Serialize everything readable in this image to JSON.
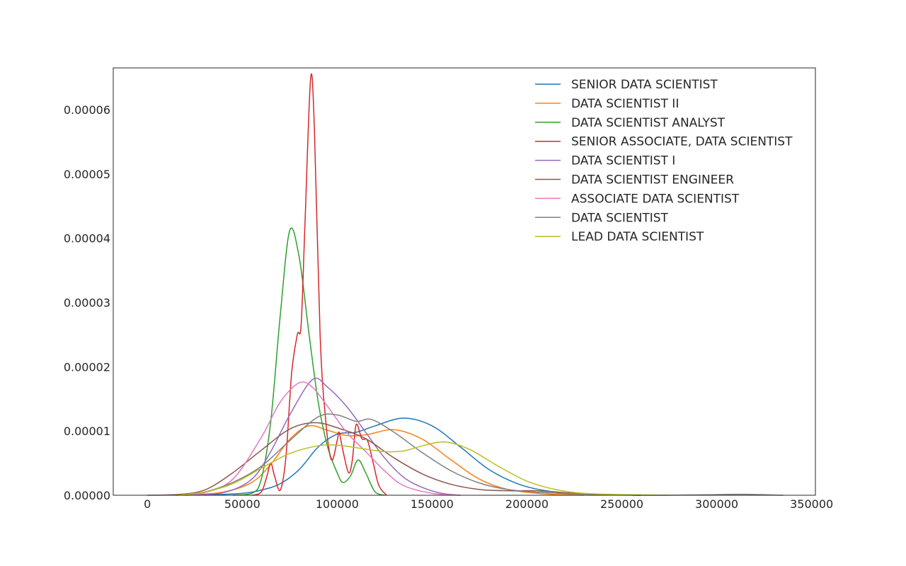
{
  "chart_data": {
    "type": "line",
    "title": "",
    "xlabel": "",
    "ylabel": "",
    "xlim": [
      -18000,
      352000
    ],
    "ylim": [
      0,
      6.65e-05
    ],
    "grid": false,
    "legend_position": "top-right",
    "x_ticks": [
      {
        "value": 0,
        "label": "0"
      },
      {
        "value": 50000,
        "label": "50000"
      },
      {
        "value": 100000,
        "label": "100000"
      },
      {
        "value": 150000,
        "label": "150000"
      },
      {
        "value": 200000,
        "label": "200000"
      },
      {
        "value": 250000,
        "label": "250000"
      },
      {
        "value": 300000,
        "label": "300000"
      },
      {
        "value": 350000,
        "label": "350000"
      }
    ],
    "y_ticks": [
      {
        "value": 0,
        "label": "0.00000"
      },
      {
        "value": 1e-05,
        "label": "0.00001"
      },
      {
        "value": 2e-05,
        "label": "0.00002"
      },
      {
        "value": 3e-05,
        "label": "0.00003"
      },
      {
        "value": 4e-05,
        "label": "0.00004"
      },
      {
        "value": 5e-05,
        "label": "0.00005"
      },
      {
        "value": 6e-05,
        "label": "0.00006"
      }
    ],
    "series": [
      {
        "name": "SENIOR DATA SCIENTIST",
        "color": "#1f77b4",
        "points": [
          [
            30000,
            0
          ],
          [
            50000,
            3e-07
          ],
          [
            60000,
            8e-07
          ],
          [
            70000,
            1.8e-06
          ],
          [
            80000,
            4e-06
          ],
          [
            90000,
            7.5e-06
          ],
          [
            100000,
            9.5e-06
          ],
          [
            110000,
            9.8e-06
          ],
          [
            120000,
            1.08e-05
          ],
          [
            135000,
            1.2e-05
          ],
          [
            150000,
            1.08e-05
          ],
          [
            165000,
            7.5e-06
          ],
          [
            180000,
            4e-06
          ],
          [
            195000,
            1.8e-06
          ],
          [
            210000,
            7e-07
          ],
          [
            230000,
            2e-07
          ],
          [
            260000,
            0
          ]
        ]
      },
      {
        "name": "DATA SCIENTIST II",
        "color": "#ff7f0e",
        "points": [
          [
            20000,
            0
          ],
          [
            40000,
            5e-07
          ],
          [
            55000,
            2e-06
          ],
          [
            65000,
            4.8e-06
          ],
          [
            75000,
            8.7e-06
          ],
          [
            85000,
            1.08e-05
          ],
          [
            95000,
            1.01e-05
          ],
          [
            105000,
            9.3e-06
          ],
          [
            115000,
            9.4e-06
          ],
          [
            130000,
            1.02e-05
          ],
          [
            145000,
            8.7e-06
          ],
          [
            160000,
            5.5e-06
          ],
          [
            175000,
            2.5e-06
          ],
          [
            190000,
            9e-07
          ],
          [
            210000,
            2e-07
          ],
          [
            230000,
            0
          ]
        ]
      },
      {
        "name": "DATA SCIENTIST ANALYST",
        "color": "#2ca02c",
        "points": [
          [
            45000,
            0
          ],
          [
            55000,
            3e-07
          ],
          [
            60000,
            2.5e-06
          ],
          [
            65000,
            1.15e-05
          ],
          [
            70000,
            2.8e-05
          ],
          [
            75000,
            4.12e-05
          ],
          [
            80000,
            3.7e-05
          ],
          [
            85000,
            2.55e-05
          ],
          [
            90000,
            1.45e-05
          ],
          [
            95000,
            7.5e-06
          ],
          [
            100000,
            3.5e-06
          ],
          [
            103000,
            2e-06
          ],
          [
            107000,
            3e-06
          ],
          [
            111000,
            5.5e-06
          ],
          [
            115000,
            3.5e-06
          ],
          [
            120000,
            5e-07
          ],
          [
            125000,
            0
          ]
        ]
      },
      {
        "name": "SENIOR ASSOCIATE, DATA SCIENTIST",
        "color": "#d62728",
        "points": [
          [
            55000,
            0
          ],
          [
            60000,
            5e-07
          ],
          [
            63000,
            3e-06
          ],
          [
            65000,
            5e-06
          ],
          [
            67000,
            3e-06
          ],
          [
            70000,
            8e-07
          ],
          [
            73000,
            6e-06
          ],
          [
            76000,
            1.9e-05
          ],
          [
            79000,
            2.5e-05
          ],
          [
            81000,
            2.65e-05
          ],
          [
            83000,
            4.2e-05
          ],
          [
            86000,
            6.48e-05
          ],
          [
            88000,
            5.7e-05
          ],
          [
            91000,
            2.5e-05
          ],
          [
            94000,
            1.15e-05
          ],
          [
            97000,
            5.5e-06
          ],
          [
            100000,
            8.5e-06
          ],
          [
            101000,
            9.8e-06
          ],
          [
            103000,
            7e-06
          ],
          [
            106000,
            3.5e-06
          ],
          [
            108000,
            5.5e-06
          ],
          [
            110000,
            1.1e-05
          ],
          [
            113000,
            8.8e-06
          ],
          [
            116000,
            8.5e-06
          ],
          [
            119000,
            5e-06
          ],
          [
            122000,
            1.5e-06
          ],
          [
            126000,
            0
          ]
        ]
      },
      {
        "name": "DATA SCIENTIST I",
        "color": "#9467bd",
        "points": [
          [
            20000,
            0
          ],
          [
            40000,
            4e-07
          ],
          [
            55000,
            2.5e-06
          ],
          [
            65000,
            6.8e-06
          ],
          [
            75000,
            1.25e-05
          ],
          [
            87000,
            1.8e-05
          ],
          [
            95000,
            1.68e-05
          ],
          [
            105000,
            1.38e-05
          ],
          [
            115000,
            9.8e-06
          ],
          [
            125000,
            5.8e-06
          ],
          [
            135000,
            2.8e-06
          ],
          [
            145000,
            1.2e-06
          ],
          [
            155000,
            3e-07
          ],
          [
            165000,
            0
          ]
        ]
      },
      {
        "name": "DATA SCIENTIST ENGINEER",
        "color": "#8c564b",
        "points": [
          [
            0,
            0
          ],
          [
            15000,
            1e-07
          ],
          [
            30000,
            8e-07
          ],
          [
            45000,
            3.5e-06
          ],
          [
            60000,
            7e-06
          ],
          [
            75000,
            1.03e-05
          ],
          [
            88000,
            1.13e-05
          ],
          [
            100000,
            1.05e-05
          ],
          [
            115000,
            8.8e-06
          ],
          [
            130000,
            5.8e-06
          ],
          [
            145000,
            3.3e-06
          ],
          [
            160000,
            1.7e-06
          ],
          [
            175000,
            9e-07
          ],
          [
            190000,
            7e-07
          ],
          [
            205000,
            7e-07
          ],
          [
            220000,
            4e-07
          ],
          [
            240000,
            1e-07
          ],
          [
            260000,
            0
          ]
        ]
      },
      {
        "name": "ASSOCIATE DATA SCIENTIST",
        "color": "#e377c2",
        "points": [
          [
            15000,
            0
          ],
          [
            30000,
            4e-07
          ],
          [
            45000,
            2.5e-06
          ],
          [
            60000,
            9e-06
          ],
          [
            70000,
            1.45e-05
          ],
          [
            80000,
            1.75e-05
          ],
          [
            87000,
            1.68e-05
          ],
          [
            95000,
            1.38e-05
          ],
          [
            105000,
            9.8e-06
          ],
          [
            115000,
            6.8e-06
          ],
          [
            125000,
            3.8e-06
          ],
          [
            135000,
            1.5e-06
          ],
          [
            150000,
            3e-07
          ],
          [
            165000,
            0
          ]
        ]
      },
      {
        "name": "DATA SCIENTIST",
        "color": "#7f7f7f",
        "points": [
          [
            15000,
            0
          ],
          [
            30000,
            5e-07
          ],
          [
            45000,
            2e-06
          ],
          [
            60000,
            4.5e-06
          ],
          [
            75000,
            8.5e-06
          ],
          [
            90000,
            1.22e-05
          ],
          [
            100000,
            1.25e-05
          ],
          [
            110000,
            1.15e-05
          ],
          [
            118000,
            1.18e-05
          ],
          [
            130000,
            9.8e-06
          ],
          [
            145000,
            6.6e-06
          ],
          [
            160000,
            3.8e-06
          ],
          [
            175000,
            1.9e-06
          ],
          [
            190000,
            9e-07
          ],
          [
            210000,
            4e-07
          ],
          [
            240000,
            1e-07
          ],
          [
            270000,
            0
          ],
          [
            300000,
            1e-07
          ],
          [
            315000,
            1.5e-07
          ],
          [
            335000,
            0
          ]
        ]
      },
      {
        "name": "LEAD DATA SCIENTIST",
        "color": "#bcbd22",
        "points": [
          [
            15000,
            0
          ],
          [
            30000,
            5e-07
          ],
          [
            45000,
            1.8e-06
          ],
          [
            60000,
            4.2e-06
          ],
          [
            75000,
            6.5e-06
          ],
          [
            90000,
            7.7e-06
          ],
          [
            100000,
            7.8e-06
          ],
          [
            110000,
            7.4e-06
          ],
          [
            125000,
            6.8e-06
          ],
          [
            135000,
            6.9e-06
          ],
          [
            145000,
            7.7e-06
          ],
          [
            157000,
            8.3e-06
          ],
          [
            170000,
            7.1e-06
          ],
          [
            185000,
            4.5e-06
          ],
          [
            200000,
            2.2e-06
          ],
          [
            215000,
            9e-07
          ],
          [
            230000,
            3e-07
          ],
          [
            250000,
            1e-07
          ],
          [
            275000,
            0
          ]
        ]
      }
    ]
  }
}
